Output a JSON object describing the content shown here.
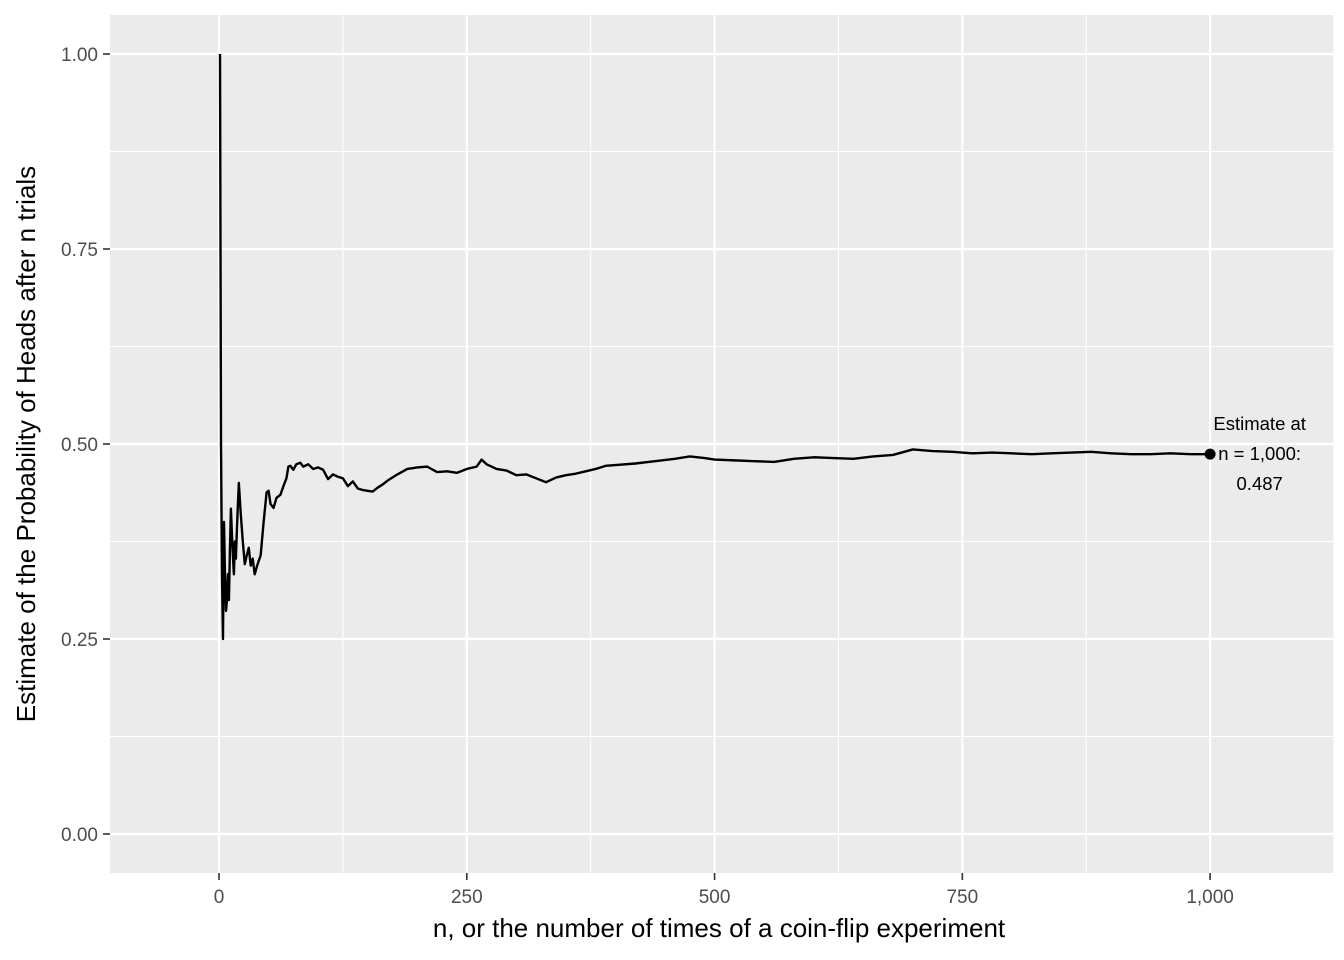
{
  "chart_data": {
    "type": "line",
    "title": "",
    "xlabel": "n, or the number of times of a coin-flip experiment",
    "ylabel": "Estimate of the Probability of Heads after n trials",
    "xlim": [
      -110,
      1125
    ],
    "ylim": [
      -0.05,
      1.05
    ],
    "x_ticks": [
      0,
      250,
      500,
      750,
      1000
    ],
    "x_tick_labels": [
      "0",
      "250",
      "500",
      "750",
      "1,000"
    ],
    "x_minor_ticks": [
      125,
      375,
      625,
      875,
      1125
    ],
    "y_ticks": [
      0,
      0.25,
      0.5,
      0.75,
      1.0
    ],
    "y_tick_labels": [
      "0.00",
      "0.25",
      "0.50",
      "0.75",
      "1.00"
    ],
    "y_minor_ticks": [
      0.125,
      0.375,
      0.625,
      0.875
    ],
    "grid": true,
    "panel_color": "#ebebeb",
    "line_color": "#000000",
    "series": [
      {
        "x": [
          1,
          2,
          3,
          4,
          5,
          6,
          7,
          8,
          9,
          10,
          11,
          12,
          13,
          14,
          15,
          16,
          17,
          18,
          19,
          20,
          22,
          24,
          26,
          28,
          30,
          32,
          34,
          36,
          38,
          40,
          42,
          45,
          48,
          50,
          52,
          55,
          58,
          60,
          62,
          65,
          68,
          70,
          72,
          75,
          78,
          80,
          82,
          85,
          90,
          95,
          100,
          105,
          110,
          115,
          120,
          125,
          130,
          135,
          140,
          145,
          150,
          155,
          160,
          165,
          170,
          180,
          190,
          200,
          210,
          220,
          230,
          240,
          250,
          260,
          265,
          270,
          280,
          290,
          300,
          310,
          320,
          330,
          340,
          350,
          360,
          370,
          380,
          390,
          400,
          420,
          440,
          460,
          475,
          490,
          500,
          520,
          540,
          560,
          580,
          600,
          620,
          640,
          660,
          680,
          700,
          720,
          740,
          760,
          780,
          800,
          820,
          840,
          860,
          880,
          900,
          920,
          940,
          960,
          980,
          1000
        ],
        "y": [
          1.0,
          0.5,
          0.333,
          0.25,
          0.4,
          0.333,
          0.286,
          0.3,
          0.333,
          0.3,
          0.364,
          0.417,
          0.385,
          0.357,
          0.333,
          0.375,
          0.353,
          0.389,
          0.421,
          0.45,
          0.409,
          0.375,
          0.346,
          0.357,
          0.367,
          0.344,
          0.353,
          0.333,
          0.342,
          0.35,
          0.357,
          0.4,
          0.438,
          0.44,
          0.423,
          0.418,
          0.431,
          0.433,
          0.435,
          0.446,
          0.456,
          0.471,
          0.472,
          0.467,
          0.474,
          0.475,
          0.476,
          0.471,
          0.474,
          0.468,
          0.47,
          0.467,
          0.455,
          0.461,
          0.458,
          0.456,
          0.446,
          0.452,
          0.443,
          0.441,
          0.44,
          0.439,
          0.444,
          0.448,
          0.453,
          0.461,
          0.468,
          0.47,
          0.471,
          0.464,
          0.465,
          0.463,
          0.468,
          0.471,
          0.48,
          0.474,
          0.468,
          0.466,
          0.46,
          0.461,
          0.456,
          0.451,
          0.457,
          0.46,
          0.462,
          0.465,
          0.468,
          0.472,
          0.473,
          0.475,
          0.478,
          0.481,
          0.484,
          0.482,
          0.48,
          0.479,
          0.478,
          0.477,
          0.481,
          0.483,
          0.482,
          0.481,
          0.484,
          0.486,
          0.493,
          0.491,
          0.49,
          0.488,
          0.489,
          0.488,
          0.487,
          0.488,
          0.489,
          0.49,
          0.488,
          0.487,
          0.487,
          0.488,
          0.487,
          0.487
        ]
      }
    ],
    "final_point": {
      "x": 1000,
      "y": 0.487
    },
    "annotation": {
      "lines": [
        "Estimate at",
        "n = 1,000:",
        "0.487"
      ],
      "x": 1050,
      "y": 0.487
    }
  }
}
